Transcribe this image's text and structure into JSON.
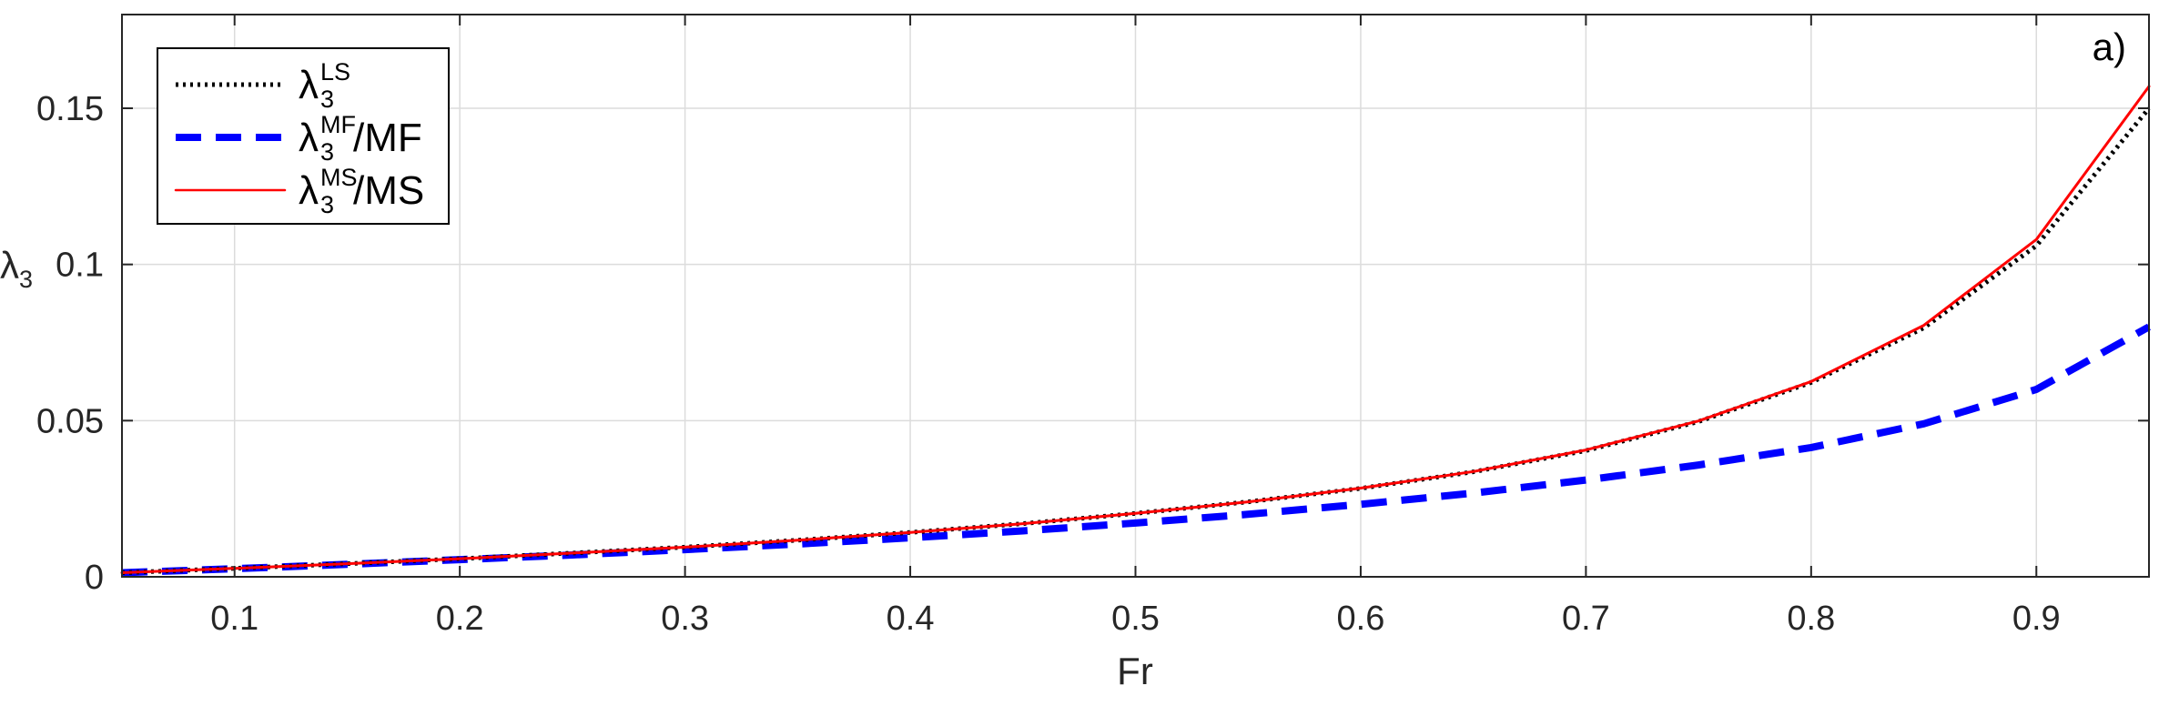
{
  "chart_data": {
    "type": "line",
    "title": "",
    "panel_label": "a)",
    "xlabel": "Fr",
    "ylabel": {
      "base": "λ",
      "sub": "3"
    },
    "xlim": [
      0.05,
      0.95
    ],
    "ylim": [
      0,
      0.18
    ],
    "xticks": [
      0.1,
      0.2,
      0.3,
      0.4,
      0.5,
      0.6,
      0.7,
      0.8,
      0.9
    ],
    "xtick_labels": [
      "0.1",
      "0.2",
      "0.3",
      "0.4",
      "0.5",
      "0.6",
      "0.7",
      "0.8",
      "0.9"
    ],
    "yticks": [
      0,
      0.05,
      0.1,
      0.15
    ],
    "ytick_labels": [
      "0",
      "0.05",
      "0.1",
      "0.15"
    ],
    "grid": true,
    "legend_position": "top-left",
    "x": [
      0.05,
      0.1,
      0.15,
      0.2,
      0.25,
      0.3,
      0.35,
      0.4,
      0.45,
      0.5,
      0.55,
      0.6,
      0.65,
      0.7,
      0.75,
      0.8,
      0.85,
      0.9,
      0.95
    ],
    "series": [
      {
        "legend": {
          "base": "λ",
          "sup": "LS",
          "sub": "3",
          "suffix": ""
        },
        "color": "#000000",
        "style": "dotted",
        "values": [
          0.0013,
          0.0027,
          0.0042,
          0.0058,
          0.0076,
          0.0095,
          0.0117,
          0.0142,
          0.017,
          0.0203,
          0.024,
          0.0283,
          0.0336,
          0.0404,
          0.0497,
          0.0622,
          0.0797,
          0.106,
          0.15
        ]
      },
      {
        "legend": {
          "base": "λ",
          "sup": "MF",
          "sub": "3",
          "suffix": "/MF"
        },
        "color": "#0000ff",
        "style": "dashed",
        "values": [
          0.0013,
          0.0026,
          0.004,
          0.0055,
          0.007,
          0.0087,
          0.0105,
          0.0125,
          0.0147,
          0.0172,
          0.02,
          0.0232,
          0.0268,
          0.031,
          0.0358,
          0.0414,
          0.049,
          0.06,
          0.08
        ]
      },
      {
        "legend": {
          "base": "λ",
          "sup": "MS",
          "sub": "3",
          "suffix": "/MS"
        },
        "color": "#ff0000",
        "style": "solid",
        "values": [
          0.0013,
          0.0027,
          0.0042,
          0.0058,
          0.0076,
          0.0095,
          0.0117,
          0.0142,
          0.017,
          0.0203,
          0.024,
          0.0284,
          0.0337,
          0.0406,
          0.0499,
          0.0625,
          0.0805,
          0.108,
          0.157
        ]
      }
    ]
  }
}
